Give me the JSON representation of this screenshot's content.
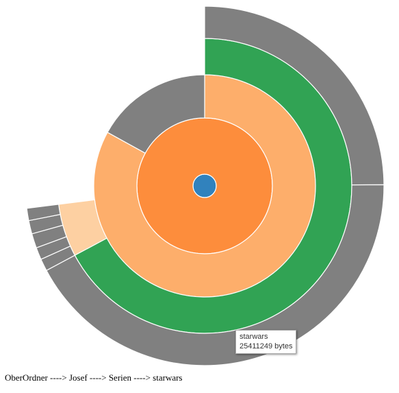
{
  "chart_data": {
    "type": "sunburst",
    "rings": [
      [
        {
          "name": "",
          "color": "#3182bd",
          "start": 0,
          "end": 1
        }
      ],
      [
        {
          "name": "",
          "color": "#fd8d3c",
          "start": 0,
          "end": 1
        }
      ],
      [
        {
          "name": "",
          "color": "#fdae6b",
          "start": 0,
          "end": 0.83
        },
        {
          "name": "",
          "color": "#808080",
          "start": 0.83,
          "end": 1
        }
      ],
      [
        {
          "name": "",
          "color": "#31a354",
          "start": 0,
          "end": 0.672
        },
        {
          "name": "",
          "color": "#fdd0a2",
          "start": 0.672,
          "end": 0.73
        }
      ],
      [
        {
          "name": "",
          "color": "#808080",
          "start": 0,
          "end": 0.249
        },
        {
          "name": "starwars",
          "color": "#808080",
          "start": 0.249,
          "end": 0.672
        },
        {
          "name": "",
          "color": "#808080",
          "start": 0.672,
          "end": 0.683
        },
        {
          "name": "",
          "color": "#808080",
          "start": 0.683,
          "end": 0.694
        },
        {
          "name": "",
          "color": "#808080",
          "start": 0.694,
          "end": 0.707
        },
        {
          "name": "",
          "color": "#808080",
          "start": 0.707,
          "end": 0.719
        },
        {
          "name": "",
          "color": "#808080",
          "start": 0.719,
          "end": 0.73
        }
      ]
    ]
  },
  "tooltip": {
    "name": "starwars",
    "size": "25411249 bytes"
  },
  "breadcrumb": "OberOrdner ----> Josef ----> Serien ----> starwars"
}
